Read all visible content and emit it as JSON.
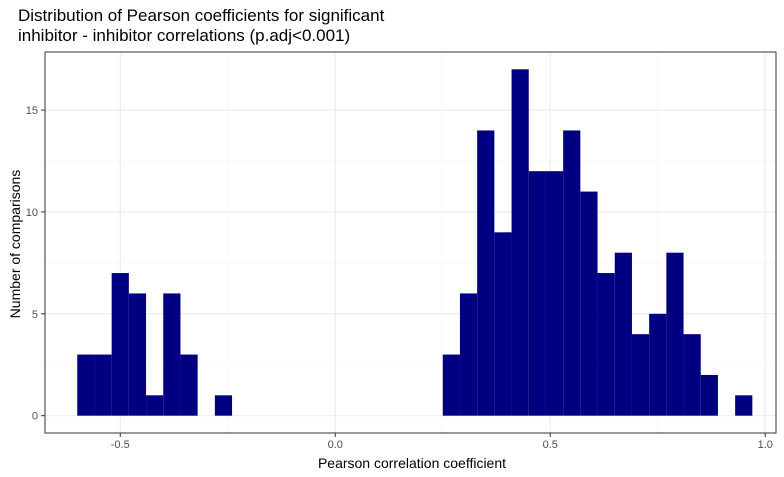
{
  "chart_data": {
    "type": "bar",
    "title": [
      "Distribution of Pearson coefficients for significant",
      "inhibitor - inhibitor correlations (p.adj<0.001)"
    ],
    "xlabel": "Pearson correlation coefficient",
    "ylabel": "Number of comparisons",
    "xlim": [
      -0.675,
      1.025
    ],
    "ylim": [
      -0.85,
      17.85
    ],
    "x_ticks": [
      -0.5,
      0.0,
      0.5,
      1.0
    ],
    "x_tick_labels": [
      "-0.5",
      "0.0",
      "0.5",
      "1.0"
    ],
    "y_ticks": [
      0,
      5,
      10,
      15
    ],
    "y_tick_labels": [
      "0",
      "5",
      "10",
      "15"
    ],
    "grid": true,
    "bar_color": "#000080",
    "bin_width": 0.04,
    "bins": [
      {
        "x0": -0.6,
        "x1": -0.56,
        "count": 3
      },
      {
        "x0": -0.56,
        "x1": -0.52,
        "count": 3
      },
      {
        "x0": -0.52,
        "x1": -0.48,
        "count": 7
      },
      {
        "x0": -0.48,
        "x1": -0.44,
        "count": 6
      },
      {
        "x0": -0.44,
        "x1": -0.4,
        "count": 1
      },
      {
        "x0": -0.4,
        "x1": -0.36,
        "count": 6
      },
      {
        "x0": -0.36,
        "x1": -0.32,
        "count": 3
      },
      {
        "x0": -0.28,
        "x1": -0.24,
        "count": 1
      },
      {
        "x0": 0.25,
        "x1": 0.29,
        "count": 3
      },
      {
        "x0": 0.29,
        "x1": 0.33,
        "count": 6
      },
      {
        "x0": 0.33,
        "x1": 0.37,
        "count": 14
      },
      {
        "x0": 0.37,
        "x1": 0.41,
        "count": 9
      },
      {
        "x0": 0.41,
        "x1": 0.45,
        "count": 17
      },
      {
        "x0": 0.45,
        "x1": 0.49,
        "count": 12
      },
      {
        "x0": 0.49,
        "x1": 0.53,
        "count": 12
      },
      {
        "x0": 0.53,
        "x1": 0.57,
        "count": 14
      },
      {
        "x0": 0.57,
        "x1": 0.61,
        "count": 11
      },
      {
        "x0": 0.61,
        "x1": 0.65,
        "count": 7
      },
      {
        "x0": 0.65,
        "x1": 0.69,
        "count": 8
      },
      {
        "x0": 0.69,
        "x1": 0.73,
        "count": 4
      },
      {
        "x0": 0.73,
        "x1": 0.77,
        "count": 5
      },
      {
        "x0": 0.77,
        "x1": 0.81,
        "count": 8
      },
      {
        "x0": 0.81,
        "x1": 0.85,
        "count": 4
      },
      {
        "x0": 0.85,
        "x1": 0.89,
        "count": 2
      },
      {
        "x0": 0.93,
        "x1": 0.97,
        "count": 1
      }
    ]
  }
}
